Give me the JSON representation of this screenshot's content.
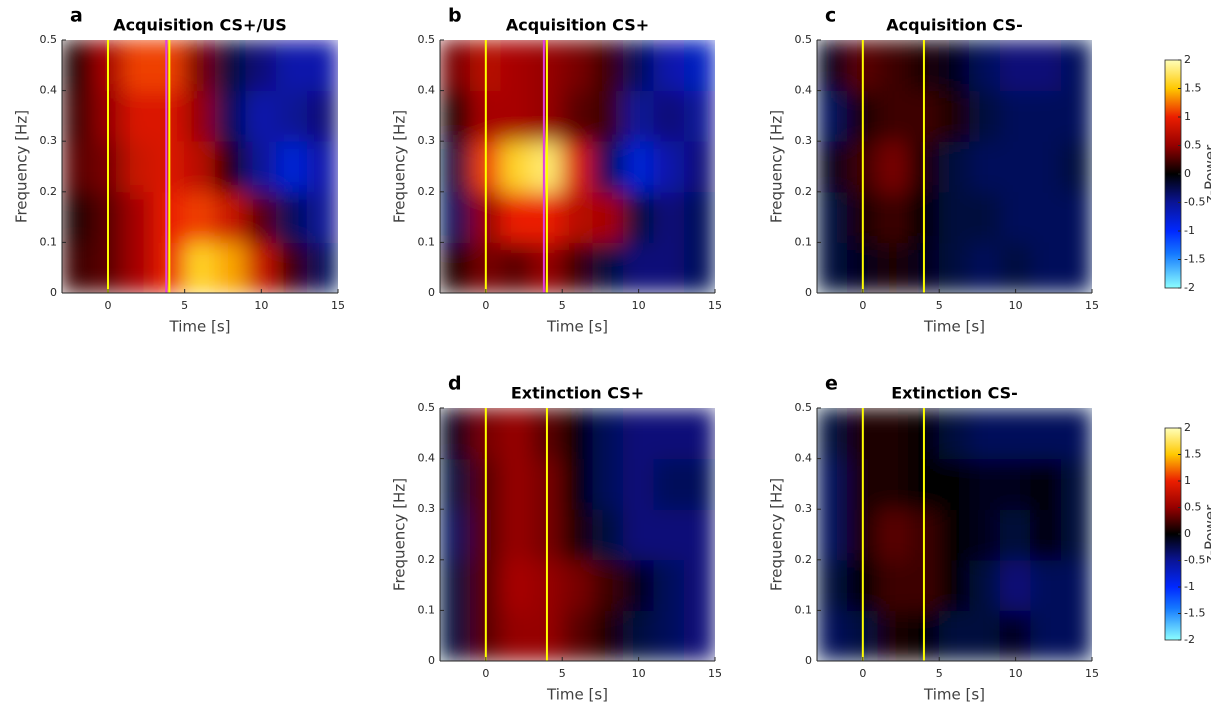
{
  "chart_data": [
    {
      "type": "heatmap",
      "panel_label": "a",
      "title": "Acquisition CS+/US",
      "xlabel": "Time [s]",
      "ylabel": "Frequency [Hz]",
      "x": [
        -2,
        0,
        2,
        4,
        6,
        8,
        10,
        12,
        14
      ],
      "y": [
        0.05,
        0.15,
        0.25,
        0.35,
        0.45
      ],
      "z": [
        [
          0.2,
          0.3,
          0.6,
          1.0,
          1.6,
          1.4,
          0.8,
          0.2,
          -0.3
        ],
        [
          0.1,
          0.3,
          0.6,
          1.0,
          1.1,
          0.8,
          0.3,
          -0.3,
          -0.5
        ],
        [
          0.3,
          0.4,
          0.8,
          0.9,
          0.7,
          0.1,
          -0.5,
          -0.8,
          -0.6
        ],
        [
          0.2,
          0.5,
          0.9,
          0.9,
          0.5,
          -0.3,
          -0.6,
          -0.5,
          -0.4
        ],
        [
          0.1,
          0.6,
          1.1,
          1.1,
          0.4,
          -0.2,
          -0.4,
          -0.6,
          -0.6
        ]
      ],
      "vlines": [
        {
          "value": 0,
          "color": "#ffff00"
        },
        {
          "value": 3.8,
          "color": "#e040e0"
        },
        {
          "value": 4,
          "color": "#ffff00"
        }
      ],
      "xlim": [
        -3,
        15
      ],
      "xticks": [
        0,
        5,
        10,
        15
      ],
      "ylim": [
        0,
        0.5
      ],
      "yticks": [
        0,
        0.1,
        0.2,
        0.3,
        0.4,
        0.5
      ]
    },
    {
      "type": "heatmap",
      "panel_label": "b",
      "title": "Acquisition CS+",
      "xlabel": "Time [s]",
      "ylabel": "Frequency [Hz]",
      "x": [
        -2,
        0,
        2,
        4,
        6,
        8,
        10,
        12,
        14
      ],
      "y": [
        0.05,
        0.15,
        0.25,
        0.35,
        0.45
      ],
      "z": [
        [
          0.1,
          0.4,
          0.3,
          0.5,
          0.2,
          -0.2,
          -0.4,
          -0.4,
          -0.3
        ],
        [
          -0.3,
          0.5,
          1.0,
          1.0,
          0.7,
          0.6,
          -0.2,
          -0.4,
          -0.3
        ],
        [
          -0.2,
          1.1,
          1.6,
          1.8,
          0.9,
          -0.3,
          -0.8,
          -0.6,
          -0.4
        ],
        [
          0.1,
          0.6,
          0.6,
          0.5,
          0.3,
          0.2,
          -0.5,
          -0.4,
          -0.5
        ],
        [
          0.4,
          0.7,
          0.6,
          0.5,
          0.4,
          0.2,
          -0.3,
          -0.6,
          -0.7
        ]
      ],
      "vlines": [
        {
          "value": 0,
          "color": "#ffff00"
        },
        {
          "value": 3.8,
          "color": "#e040e0"
        },
        {
          "value": 4,
          "color": "#ffff00"
        }
      ],
      "xlim": [
        -3,
        15
      ],
      "xticks": [
        0,
        5,
        10,
        15
      ],
      "ylim": [
        0,
        0.5
      ],
      "yticks": [
        0,
        0.1,
        0.2,
        0.3,
        0.4,
        0.5
      ]
    },
    {
      "type": "heatmap",
      "panel_label": "c",
      "title": "Acquisition CS-",
      "xlabel": "Time [s]",
      "ylabel": "Frequency [Hz]",
      "x": [
        -2,
        0,
        2,
        4,
        6,
        8,
        10,
        12,
        14
      ],
      "y": [
        0.05,
        0.15,
        0.25,
        0.35,
        0.45
      ],
      "z": [
        [
          -0.2,
          -0.1,
          0.1,
          -0.1,
          -0.2,
          -0.3,
          -0.2,
          -0.3,
          -0.3
        ],
        [
          -0.2,
          0.1,
          0.2,
          0.0,
          -0.2,
          -0.2,
          -0.3,
          -0.3,
          -0.3
        ],
        [
          -0.1,
          0.2,
          0.4,
          0.1,
          -0.2,
          -0.3,
          -0.3,
          -0.3,
          -0.2
        ],
        [
          -0.3,
          0.1,
          0.2,
          0.2,
          0.1,
          -0.2,
          -0.3,
          -0.3,
          -0.3
        ],
        [
          -0.1,
          0.3,
          0.2,
          0.1,
          -0.1,
          -0.3,
          -0.4,
          -0.4,
          -0.3
        ]
      ],
      "vlines": [
        {
          "value": 0,
          "color": "#ffff00"
        },
        {
          "value": 4,
          "color": "#ffff00"
        }
      ],
      "xlim": [
        -3,
        15
      ],
      "xticks": [
        0,
        5,
        10,
        15
      ],
      "ylim": [
        0,
        0.5
      ],
      "yticks": [
        0,
        0.1,
        0.2,
        0.3,
        0.4,
        0.5
      ]
    },
    {
      "type": "heatmap",
      "panel_label": "d",
      "title": "Extinction CS+",
      "xlabel": "Time [s]",
      "ylabel": "Frequency [Hz]",
      "x": [
        -2,
        0,
        2,
        4,
        6,
        8,
        10,
        12,
        14
      ],
      "y": [
        0.05,
        0.15,
        0.25,
        0.35,
        0.45
      ],
      "z": [
        [
          -0.2,
          0.3,
          0.5,
          0.5,
          0.3,
          0.1,
          -0.2,
          -0.3,
          -0.4
        ],
        [
          -0.2,
          0.3,
          0.6,
          0.5,
          0.4,
          0.2,
          -0.1,
          -0.3,
          -0.4
        ],
        [
          -0.3,
          0.3,
          0.5,
          0.4,
          0.1,
          -0.2,
          -0.4,
          -0.4,
          -0.4
        ],
        [
          -0.2,
          0.3,
          0.5,
          0.4,
          0.0,
          -0.3,
          -0.4,
          -0.3,
          -0.3
        ],
        [
          -0.1,
          0.4,
          0.5,
          0.3,
          0.0,
          -0.3,
          -0.4,
          -0.4,
          -0.4
        ]
      ],
      "vlines": [
        {
          "value": 0,
          "color": "#ffff00"
        },
        {
          "value": 4,
          "color": "#ffff00"
        }
      ],
      "xlim": [
        -3,
        15
      ],
      "xticks": [
        0,
        5,
        10,
        15
      ],
      "ylim": [
        0,
        0.5
      ],
      "yticks": [
        0,
        0.1,
        0.2,
        0.3,
        0.4,
        0.5
      ]
    },
    {
      "type": "heatmap",
      "panel_label": "e",
      "title": "Extinction CS-",
      "xlabel": "Time [s]",
      "ylabel": "Frequency [Hz]",
      "x": [
        -2,
        0,
        2,
        4,
        6,
        8,
        10,
        12,
        14
      ],
      "y": [
        0.05,
        0.15,
        0.25,
        0.35,
        0.45
      ],
      "z": [
        [
          -0.3,
          -0.2,
          0.1,
          0.0,
          -0.2,
          -0.2,
          -0.1,
          -0.3,
          -0.3
        ],
        [
          -0.2,
          0.0,
          0.2,
          0.2,
          0.0,
          -0.2,
          -0.4,
          -0.3,
          -0.3
        ],
        [
          -0.3,
          0.1,
          0.3,
          0.2,
          0.0,
          -0.1,
          -0.2,
          0.0,
          -0.2
        ],
        [
          -0.3,
          0.1,
          0.1,
          0.0,
          0.0,
          -0.1,
          -0.1,
          0.0,
          -0.2
        ],
        [
          -0.2,
          0.1,
          0.1,
          0.0,
          -0.2,
          -0.3,
          -0.3,
          -0.3,
          -0.3
        ]
      ],
      "vlines": [
        {
          "value": 0,
          "color": "#ffff00"
        },
        {
          "value": 4,
          "color": "#ffff00"
        }
      ],
      "xlim": [
        -3,
        15
      ],
      "xticks": [
        0,
        5,
        10,
        15
      ],
      "ylim": [
        0,
        0.5
      ],
      "yticks": [
        0,
        0.1,
        0.2,
        0.3,
        0.4,
        0.5
      ]
    }
  ],
  "colorbars": [
    {
      "label": "z-Power",
      "lim": [
        -2,
        2
      ],
      "ticks": [
        -2,
        -1.5,
        -1,
        -0.5,
        0,
        0.5,
        1,
        1.5,
        2
      ]
    },
    {
      "label": "z-Power",
      "lim": [
        -2,
        2
      ],
      "ticks": [
        -2,
        -1.5,
        -1,
        -0.5,
        0,
        0.5,
        1,
        1.5,
        2
      ]
    }
  ]
}
